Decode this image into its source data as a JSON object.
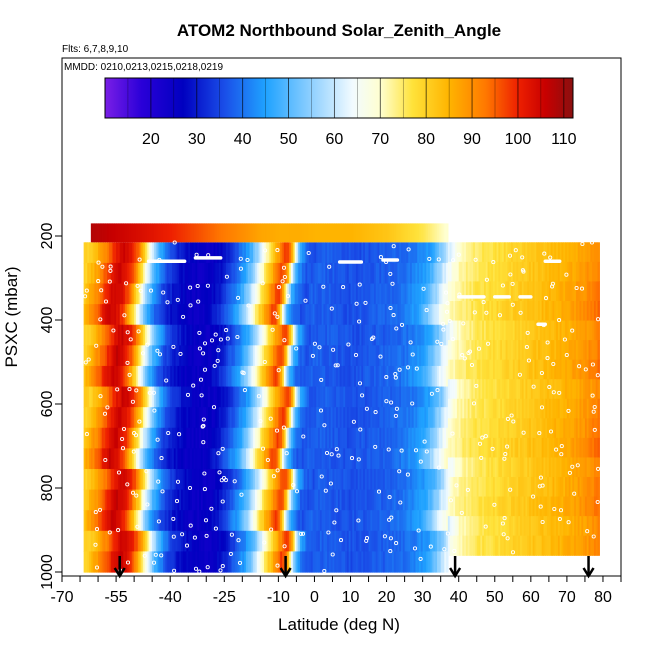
{
  "chart_data": {
    "type": "heatmap",
    "title": "ATOM2 Northbound Solar_Zenith_Angle",
    "flights_note": "Flts: 6,7,8,9,10",
    "dates_note": "MMDD: 0210,0213,0215,0218,0219",
    "xlabel": "Latitude (deg N)",
    "ylabel": "PSXC (mbar)",
    "xlim": [
      -70,
      85
    ],
    "ylim": [
      1000,
      100
    ],
    "x_ticks": [
      -70,
      -65,
      -60,
      -55,
      -50,
      -45,
      -40,
      -35,
      -30,
      -25,
      -20,
      -15,
      -10,
      -5,
      0,
      5,
      10,
      15,
      20,
      25,
      30,
      35,
      40,
      45,
      50,
      55,
      60,
      65,
      70,
      75,
      80,
      85
    ],
    "x_tick_labels": [
      "-70",
      "-55",
      "-40",
      "-25",
      "-10",
      "0",
      "10",
      "20",
      "30",
      "40",
      "50",
      "60",
      "70",
      "80"
    ],
    "x_tick_label_values": [
      -70,
      -55,
      -40,
      -25,
      -10,
      0,
      10,
      20,
      30,
      40,
      50,
      60,
      70,
      80
    ],
    "y_ticks": [
      200,
      400,
      600,
      800,
      1000
    ],
    "y_tick_labels": [
      "200",
      "400",
      "600",
      "800",
      "1000"
    ],
    "colorbar": {
      "range": [
        10,
        112
      ],
      "ticks": [
        20,
        30,
        40,
        50,
        60,
        70,
        80,
        90,
        100,
        110
      ],
      "tick_labels": [
        "20",
        "30",
        "40",
        "50",
        "60",
        "70",
        "80",
        "90",
        "100",
        "110"
      ]
    },
    "colormap": [
      [
        10,
        "#7a1ee6"
      ],
      [
        18,
        "#2a00d8"
      ],
      [
        27,
        "#0000c0"
      ],
      [
        36,
        "#1a4ee8"
      ],
      [
        45,
        "#1fa2ff"
      ],
      [
        55,
        "#8fd0ff"
      ],
      [
        64,
        "#f2fbff"
      ],
      [
        70,
        "#ffffd0"
      ],
      [
        77,
        "#ffe23a"
      ],
      [
        85,
        "#ffb400"
      ],
      [
        93,
        "#ff7800"
      ],
      [
        100,
        "#ee2000"
      ],
      [
        106,
        "#c80000"
      ],
      [
        112,
        "#8a1010"
      ]
    ],
    "latitude_profile": {
      "lat": [
        -64,
        -60,
        -57,
        -55,
        -53,
        -51,
        -49,
        -47,
        -45,
        -42,
        -39,
        -35,
        -33,
        -31,
        -29,
        -26,
        -23,
        -20,
        -18,
        -16,
        -14,
        -12,
        -10,
        -9,
        -8,
        -7,
        -6,
        -4,
        -2,
        0,
        5,
        10,
        15,
        20,
        25,
        30,
        32,
        34,
        35,
        37,
        38,
        40,
        42,
        45,
        50,
        55,
        60,
        65,
        70,
        75,
        78,
        80
      ],
      "sza": [
        80,
        91,
        101,
        106,
        103,
        95,
        80,
        62,
        48,
        36,
        30,
        26,
        25,
        25,
        26,
        30,
        38,
        46,
        55,
        66,
        78,
        88,
        98,
        96,
        82,
        62,
        48,
        38,
        36,
        38,
        37,
        36,
        37,
        38,
        40,
        45,
        50,
        56,
        61,
        66,
        70,
        72,
        74,
        76,
        78,
        80,
        82,
        84,
        86,
        89,
        92,
        94
      ]
    },
    "top_strip": {
      "pressure_range": [
        170,
        215
      ],
      "lat": [
        -62,
        -50,
        -40,
        -30,
        -20,
        -15,
        -10,
        -5,
        0,
        10,
        20,
        25,
        30,
        33,
        36
      ],
      "sza": [
        108,
        104,
        100,
        95,
        90,
        87,
        86,
        86,
        85,
        85,
        82,
        79,
        76,
        73,
        70
      ]
    },
    "coverage": [
      {
        "lat": [
          -64,
          37
        ],
        "p": [
          215,
          1000
        ]
      },
      {
        "lat": [
          37,
          79
        ],
        "p": [
          215,
          960
        ]
      },
      {
        "lat": [
          -62,
          37
        ],
        "p": [
          170,
          215
        ]
      }
    ],
    "flight_arrows_lat": [
      -54,
      -8,
      39,
      76
    ],
    "annotations": [
      "Flts: 6,7,8,9,10",
      "MMDD: 0210,0213,0215,0218,0219"
    ]
  }
}
